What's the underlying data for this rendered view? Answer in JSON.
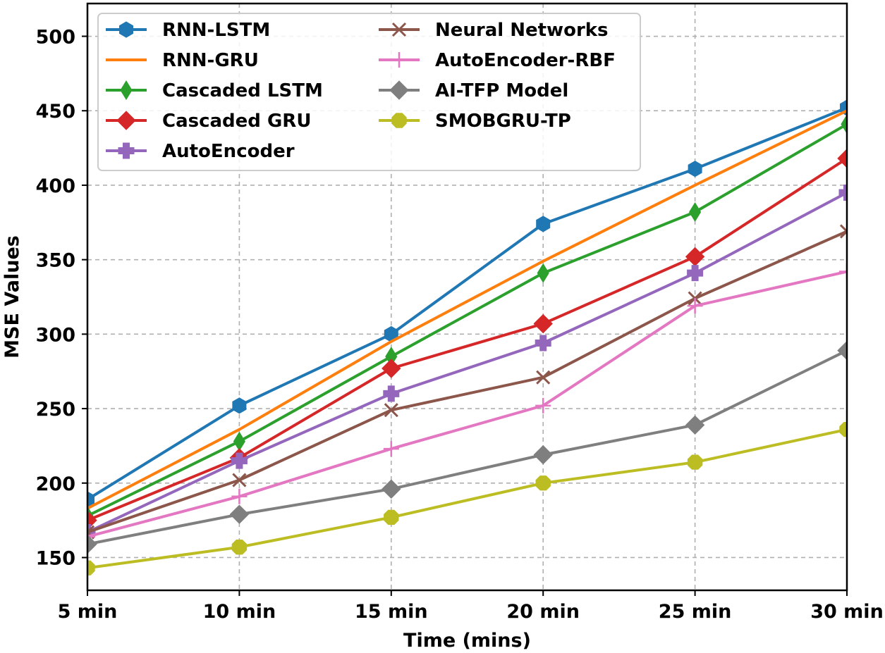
{
  "chart_data": {
    "type": "line",
    "title": "",
    "xlabel": "Time (mins)",
    "ylabel": "MSE Values",
    "categories": [
      "5 min",
      "10 min",
      "15 min",
      "20 min",
      "25 min",
      "30 min"
    ],
    "ylim": [
      128,
      522
    ],
    "yticks": [
      150,
      200,
      250,
      300,
      350,
      400,
      450,
      500
    ],
    "grid": true,
    "legend_position": "top-left",
    "series": [
      {
        "name": "RNN-LSTM",
        "color": "#1f77b4",
        "marker": "hexagon",
        "values": [
          189,
          252,
          300,
          374,
          411,
          452
        ]
      },
      {
        "name": "RNN-GRU",
        "color": "#ff7f0e",
        "marker": "none",
        "values": [
          183,
          236,
          295,
          349,
          400,
          450
        ]
      },
      {
        "name": "Cascaded LSTM",
        "color": "#2ca02c",
        "marker": "thin-diamond",
        "values": [
          178,
          228,
          285,
          341,
          382,
          441
        ]
      },
      {
        "name": "Cascaded GRU",
        "color": "#d62728",
        "marker": "diamond",
        "values": [
          175,
          217,
          277,
          307,
          352,
          418
        ]
      },
      {
        "name": "AutoEncoder",
        "color": "#9467bd",
        "marker": "plus-filled",
        "values": [
          167,
          215,
          260,
          294,
          341,
          395
        ]
      },
      {
        "name": "Neural Networks",
        "color": "#8c564b",
        "marker": "x",
        "values": [
          167,
          202,
          249,
          271,
          324,
          369
        ]
      },
      {
        "name": "AutoEncoder-RBF",
        "color": "#e377c2",
        "marker": "plus",
        "values": [
          164,
          191,
          223,
          252,
          319,
          342
        ]
      },
      {
        "name": "AI-TFP Model",
        "color": "#7f7f7f",
        "marker": "diamond",
        "values": [
          159,
          179,
          196,
          219,
          239,
          289
        ]
      },
      {
        "name": "SMOBGRU-TP",
        "color": "#bcbd22",
        "marker": "octagon",
        "values": [
          143,
          157,
          177,
          200,
          214,
          236
        ]
      }
    ]
  }
}
